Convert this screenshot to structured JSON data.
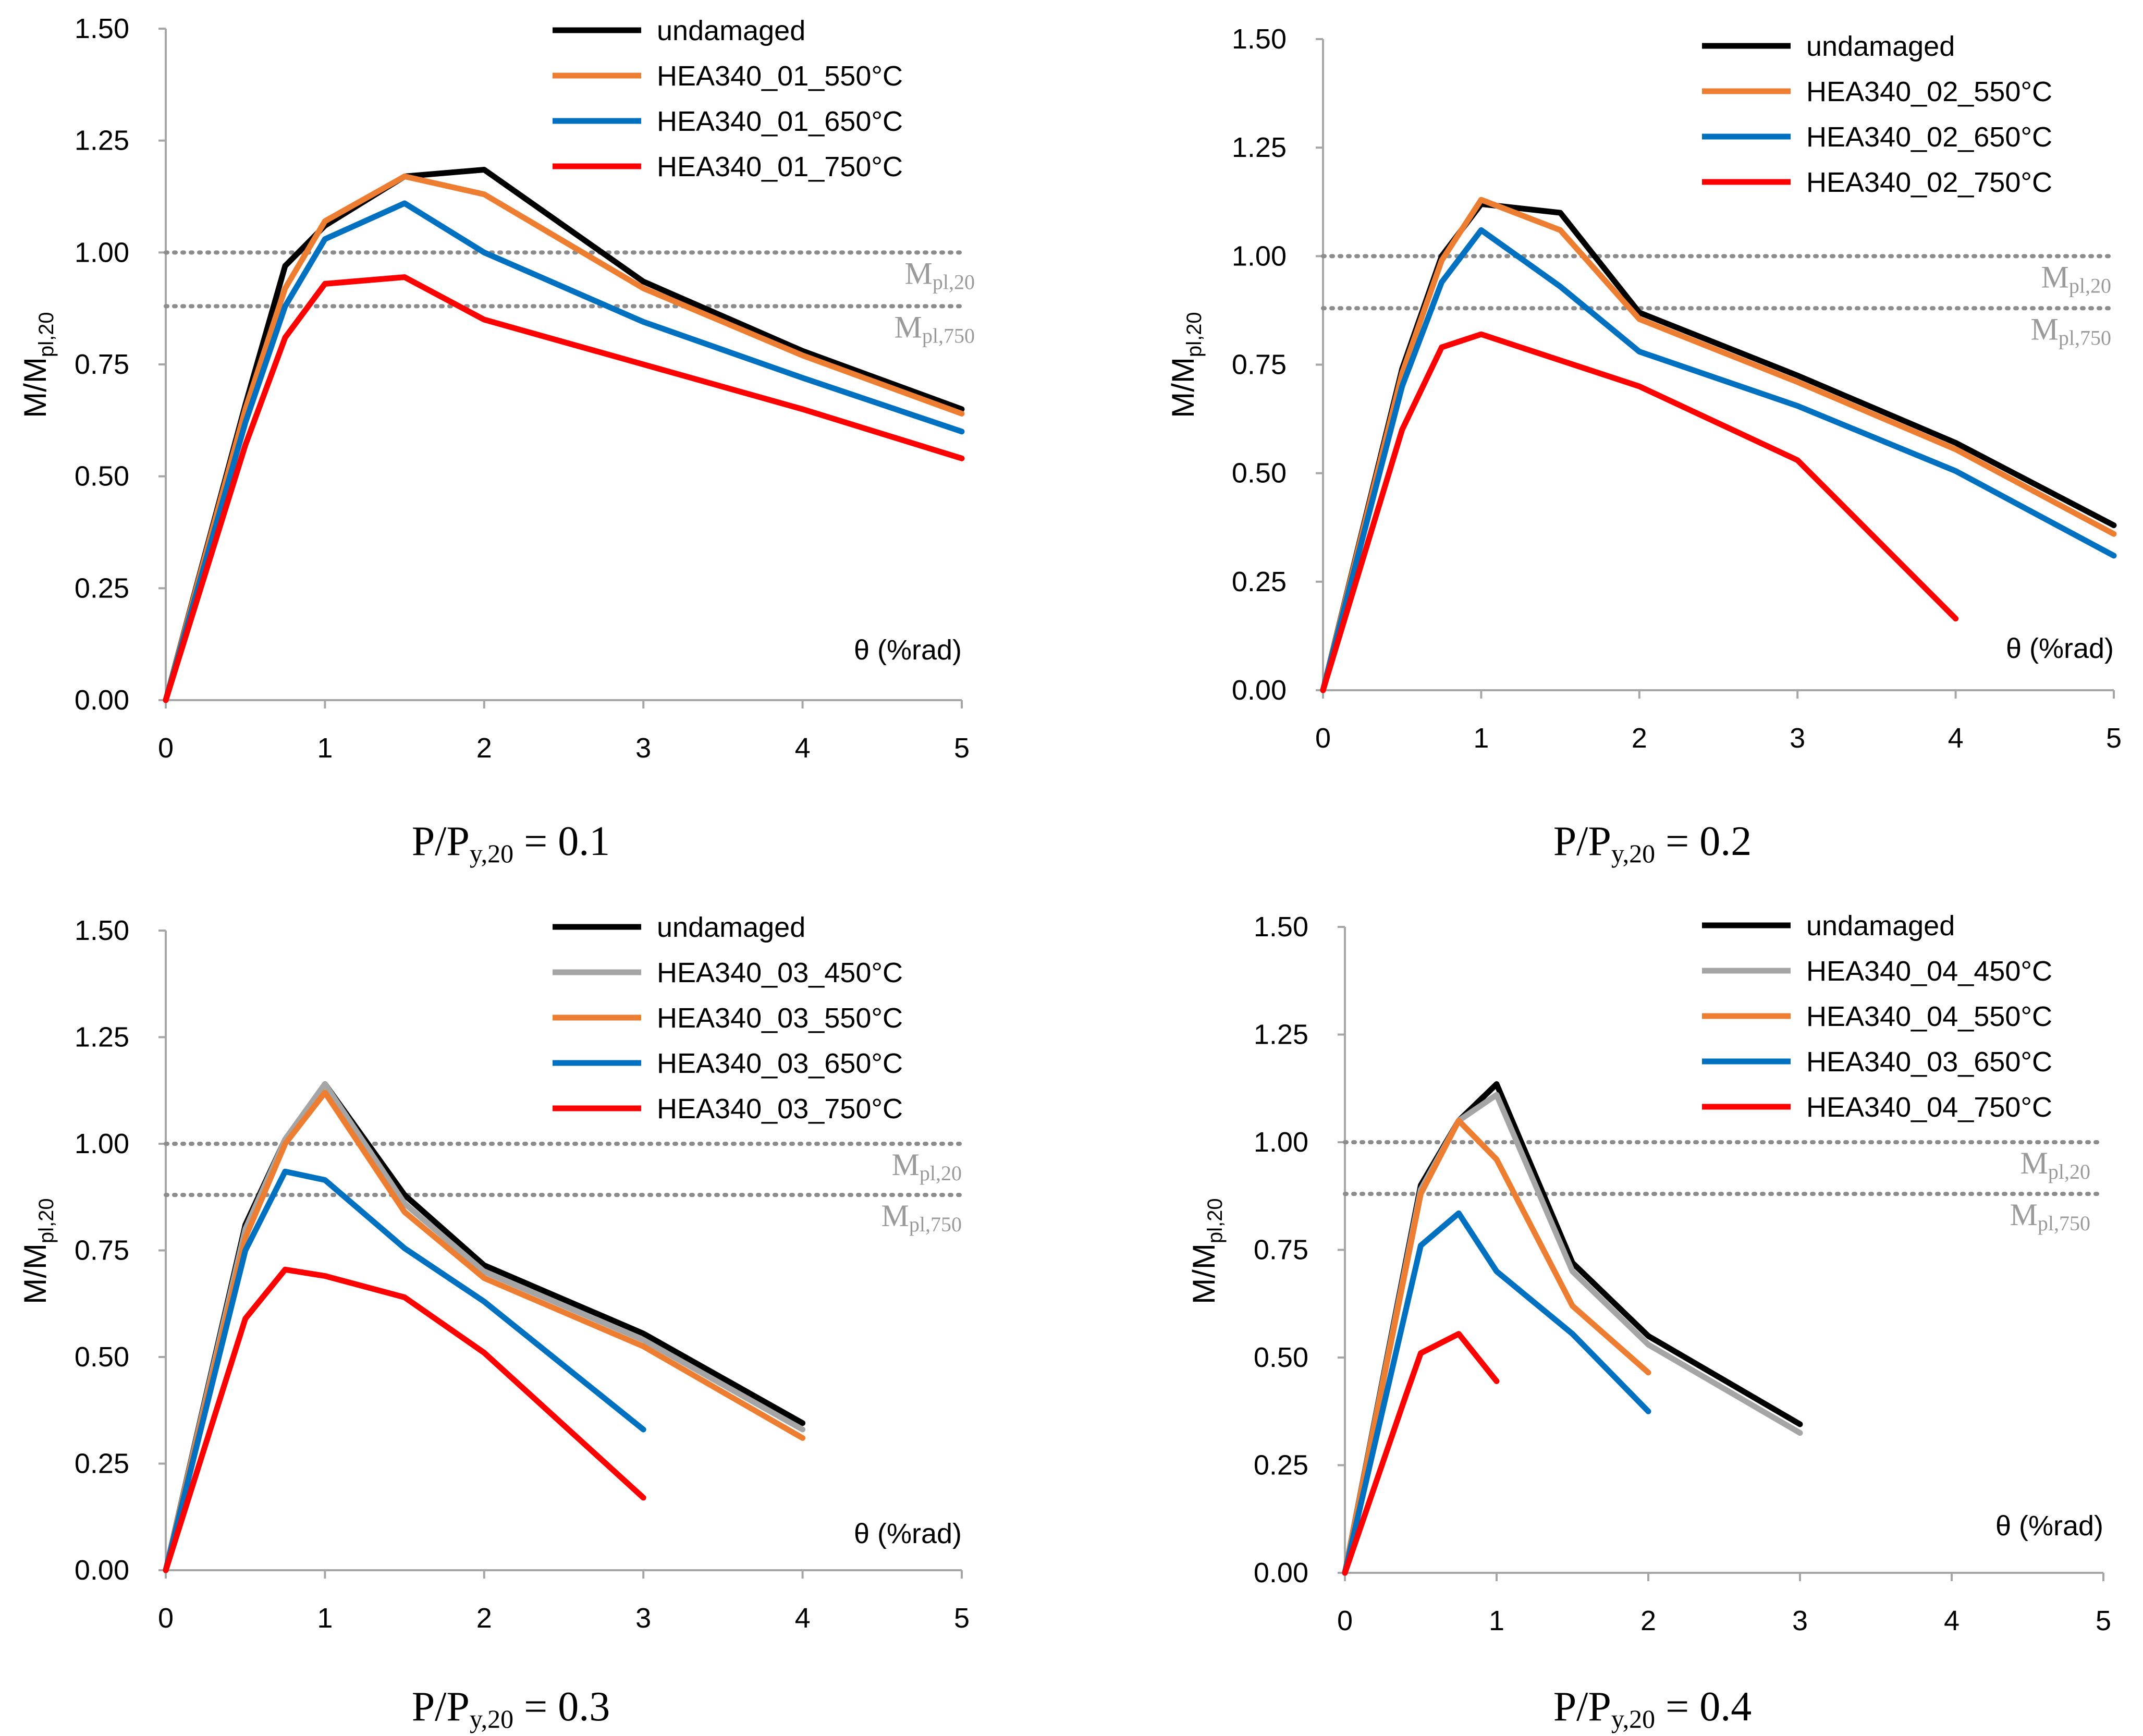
{
  "chart_data": [
    {
      "type": "line",
      "caption": {
        "main": "P/P",
        "sub": "y,20",
        "rest": " = 0.1"
      },
      "ylabel": {
        "main": "M/M",
        "sub": "pl,20"
      },
      "xlabel": "θ (%rad)",
      "xlim": [
        0,
        5
      ],
      "ylim": [
        0,
        1.5
      ],
      "xticks": [
        "0",
        "1",
        "2",
        "3",
        "4",
        "5"
      ],
      "yticks": [
        "0.00",
        "0.25",
        "0.50",
        "0.75",
        "1.00",
        "1.25",
        "1.50"
      ],
      "ref_lines": [
        {
          "y": 1.0,
          "label_main": "M",
          "label_sub": "pl,20"
        },
        {
          "y": 0.88,
          "label_main": "M",
          "label_sub": "pl,750"
        }
      ],
      "series": [
        {
          "name": "undamaged",
          "color": "#000000",
          "x": [
            0,
            0.5,
            0.75,
            1,
            1.5,
            2,
            3,
            4,
            5
          ],
          "y": [
            0,
            0.66,
            0.97,
            1.06,
            1.17,
            1.185,
            0.935,
            0.78,
            0.65
          ]
        },
        {
          "name": "HEA340_01_550°C",
          "color": "#ed7d31",
          "x": [
            0,
            0.5,
            0.75,
            1,
            1.5,
            2,
            3,
            4,
            5
          ],
          "y": [
            0,
            0.65,
            0.92,
            1.07,
            1.17,
            1.13,
            0.92,
            0.77,
            0.64
          ]
        },
        {
          "name": "HEA340_01_650°C",
          "color": "#0070c0",
          "x": [
            0,
            0.5,
            0.75,
            1,
            1.5,
            2,
            3,
            4,
            5
          ],
          "y": [
            0,
            0.62,
            0.88,
            1.03,
            1.11,
            1.0,
            0.845,
            0.72,
            0.6
          ]
        },
        {
          "name": "HEA340_01_750°C",
          "color": "#ff0000",
          "x": [
            0,
            0.5,
            0.75,
            1,
            1.5,
            2,
            3,
            4,
            5
          ],
          "y": [
            0,
            0.57,
            0.81,
            0.93,
            0.945,
            0.85,
            0.75,
            0.65,
            0.54
          ]
        }
      ]
    },
    {
      "type": "line",
      "caption": {
        "main": "P/P",
        "sub": "y,20",
        "rest": " = 0.2"
      },
      "ylabel": {
        "main": "M/M",
        "sub": "pl,20"
      },
      "xlabel": "θ (%rad)",
      "xlim": [
        0,
        5
      ],
      "ylim": [
        0,
        1.5
      ],
      "xticks": [
        "0",
        "1",
        "2",
        "3",
        "4",
        "5"
      ],
      "yticks": [
        "0.00",
        "0.25",
        "0.50",
        "0.75",
        "1.00",
        "1.25",
        "1.50"
      ],
      "ref_lines": [
        {
          "y": 1.0,
          "label_main": "M",
          "label_sub": "pl,20"
        },
        {
          "y": 0.88,
          "label_main": "M",
          "label_sub": "pl,750"
        }
      ],
      "series": [
        {
          "name": "undamaged",
          "color": "#000000",
          "x": [
            0,
            0.5,
            0.75,
            1,
            1.5,
            2,
            3,
            4,
            5
          ],
          "y": [
            0,
            0.74,
            1.0,
            1.12,
            1.1,
            0.87,
            0.725,
            0.57,
            0.38
          ]
        },
        {
          "name": "HEA340_02_550°C",
          "color": "#ed7d31",
          "x": [
            0,
            0.5,
            0.75,
            1,
            1.5,
            2,
            3,
            4,
            5
          ],
          "y": [
            0,
            0.73,
            0.99,
            1.13,
            1.06,
            0.855,
            0.71,
            0.555,
            0.36
          ]
        },
        {
          "name": "HEA340_02_650°C",
          "color": "#0070c0",
          "x": [
            0,
            0.5,
            0.75,
            1,
            1.5,
            2,
            3,
            4,
            5
          ],
          "y": [
            0,
            0.7,
            0.94,
            1.06,
            0.93,
            0.78,
            0.655,
            0.505,
            0.31
          ]
        },
        {
          "name": "HEA340_02_750°C",
          "color": "#ff0000",
          "x": [
            0,
            0.5,
            0.75,
            1,
            1.5,
            2,
            3,
            4
          ],
          "y": [
            0,
            0.6,
            0.79,
            0.82,
            0.76,
            0.7,
            0.53,
            0.165
          ]
        }
      ]
    },
    {
      "type": "line",
      "caption": {
        "main": "P/P",
        "sub": "y,20",
        "rest": " = 0.3"
      },
      "ylabel": {
        "main": "M/M",
        "sub": "pl,20"
      },
      "xlabel": "θ (%rad)",
      "xlim": [
        0,
        5
      ],
      "ylim": [
        0,
        1.5
      ],
      "xticks": [
        "0",
        "1",
        "2",
        "3",
        "4",
        "5"
      ],
      "yticks": [
        "0.00",
        "0.25",
        "0.50",
        "0.75",
        "1.00",
        "1.25",
        "1.50"
      ],
      "ref_lines": [
        {
          "y": 1.0,
          "label_main": "M",
          "label_sub": "pl,20"
        },
        {
          "y": 0.88,
          "label_main": "M",
          "label_sub": "pl,750"
        }
      ],
      "series": [
        {
          "name": "undamaged",
          "color": "#000000",
          "x": [
            0,
            0.5,
            0.75,
            1,
            1.5,
            2,
            3,
            4
          ],
          "y": [
            0,
            0.81,
            1.01,
            1.14,
            0.88,
            0.715,
            0.555,
            0.345
          ]
        },
        {
          "name": "HEA340_03_450°C",
          "color": "#a5a5a5",
          "x": [
            0,
            0.5,
            0.75,
            1,
            1.5,
            2,
            3,
            4
          ],
          "y": [
            0,
            0.8,
            1.01,
            1.14,
            0.86,
            0.7,
            0.54,
            0.33
          ]
        },
        {
          "name": "HEA340_03_550°C",
          "color": "#ed7d31",
          "x": [
            0,
            0.5,
            0.75,
            1,
            1.5,
            2,
            3,
            4
          ],
          "y": [
            0,
            0.78,
            1.0,
            1.12,
            0.84,
            0.685,
            0.525,
            0.31
          ]
        },
        {
          "name": "HEA340_03_650°C",
          "color": "#0070c0",
          "x": [
            0,
            0.5,
            0.75,
            1,
            1.5,
            2,
            3
          ],
          "y": [
            0,
            0.75,
            0.935,
            0.915,
            0.755,
            0.63,
            0.33
          ]
        },
        {
          "name": "HEA340_03_750°C",
          "color": "#ff0000",
          "x": [
            0,
            0.5,
            0.75,
            1,
            1.5,
            2,
            3
          ],
          "y": [
            0,
            0.59,
            0.705,
            0.69,
            0.64,
            0.51,
            0.17
          ]
        }
      ]
    },
    {
      "type": "line",
      "caption": {
        "main": "P/P",
        "sub": "y,20",
        "rest": " = 0.4"
      },
      "ylabel": {
        "main": "M/M",
        "sub": "pl,20"
      },
      "xlabel": "θ (%rad)",
      "xlim": [
        0,
        5
      ],
      "ylim": [
        0,
        1.5
      ],
      "xticks": [
        "0",
        "1",
        "2",
        "3",
        "4",
        "5"
      ],
      "yticks": [
        "0.00",
        "0.25",
        "0.50",
        "0.75",
        "1.00",
        "1.25",
        "1.50"
      ],
      "ref_lines": [
        {
          "y": 1.0,
          "label_main": "M",
          "label_sub": "pl,20"
        },
        {
          "y": 0.88,
          "label_main": "M",
          "label_sub": "pl,750"
        }
      ],
      "series": [
        {
          "name": "undamaged",
          "color": "#000000",
          "x": [
            0,
            0.5,
            0.75,
            1,
            1.5,
            2,
            3
          ],
          "y": [
            0,
            0.9,
            1.05,
            1.135,
            0.72,
            0.55,
            0.345
          ]
        },
        {
          "name": "HEA340_04_450°C",
          "color": "#a5a5a5",
          "x": [
            0,
            0.5,
            0.75,
            1,
            1.5,
            2,
            3
          ],
          "y": [
            0,
            0.89,
            1.05,
            1.11,
            0.7,
            0.53,
            0.325
          ]
        },
        {
          "name": "HEA340_04_550°C",
          "color": "#ed7d31",
          "x": [
            0,
            0.5,
            0.75,
            1,
            1.5,
            2
          ],
          "y": [
            0,
            0.88,
            1.05,
            0.96,
            0.62,
            0.465
          ]
        },
        {
          "name": "HEA340_03_650°C",
          "color": "#0070c0",
          "x": [
            0,
            0.5,
            0.75,
            1,
            1.5,
            2
          ],
          "y": [
            0,
            0.76,
            0.835,
            0.7,
            0.555,
            0.375
          ]
        },
        {
          "name": "HEA340_04_750°C",
          "color": "#ff0000",
          "x": [
            0,
            0.4,
            0.5,
            0.75,
            1
          ],
          "y": [
            0,
            0.41,
            0.51,
            0.555,
            0.445
          ]
        }
      ]
    }
  ]
}
